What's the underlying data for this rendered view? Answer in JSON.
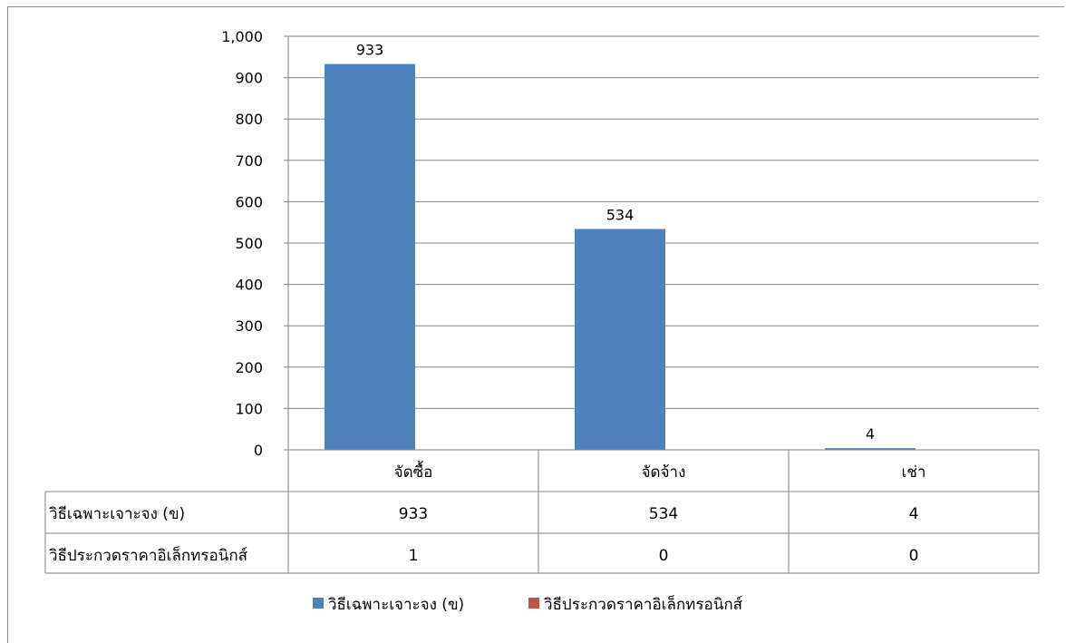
{
  "chart_data": {
    "type": "bar",
    "categories": [
      "จัดซื้อ",
      "จัดจ้าง",
      "เช่า"
    ],
    "series": [
      {
        "name": "วิธีเฉพาะเจาะจง (ข)",
        "values": [
          933,
          534,
          4
        ],
        "color": "#4f81bd"
      },
      {
        "name": "วิธีประกวดราคาอิเล็กทรอนิกส์",
        "values": [
          1,
          0,
          0
        ],
        "color": "#c0504d"
      }
    ],
    "yticks": [
      "0",
      "100",
      "200",
      "300",
      "400",
      "500",
      "600",
      "700",
      "800",
      "900",
      "1,000"
    ],
    "ylim": [
      0,
      1000
    ],
    "data_labels": [
      "933",
      "534",
      "4"
    ],
    "table": {
      "rows": [
        {
          "label": "วิธีเฉพาะเจาะจง (ข)",
          "cells": [
            "933",
            "534",
            "4"
          ]
        },
        {
          "label": "วิธีประกวดราคาอิเล็กทรอนิกส์",
          "cells": [
            "1",
            "0",
            "0"
          ]
        }
      ]
    },
    "grid": true,
    "legend_position": "bottom"
  }
}
